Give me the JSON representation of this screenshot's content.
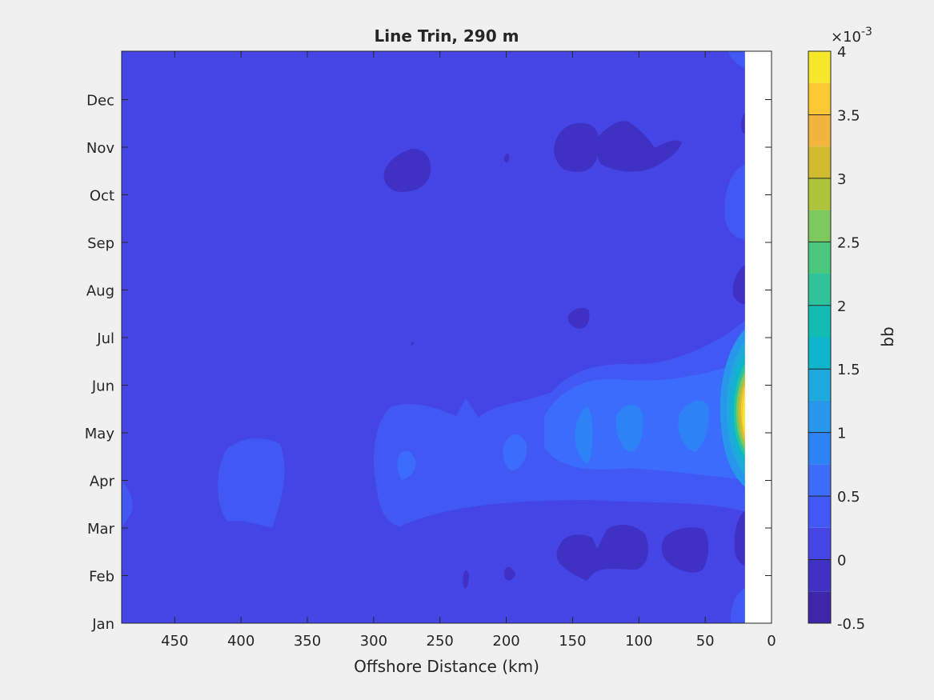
{
  "chart_data": {
    "type": "heatmap",
    "subtype": "filled-contour",
    "title": "Line Trin, 290 m",
    "xlabel": "Offshore Distance (km)",
    "ylabel": "",
    "x_reversed": true,
    "xlim": [
      490,
      0
    ],
    "x_ticks": [
      450,
      400,
      350,
      300,
      250,
      200,
      150,
      100,
      50,
      0
    ],
    "y_ticks": [
      "Jan",
      "Feb",
      "Mar",
      "Apr",
      "May",
      "Jun",
      "Jul",
      "Aug",
      "Sep",
      "Oct",
      "Nov",
      "Dec"
    ],
    "no_data_region": {
      "x_from": 20,
      "x_to": 0
    },
    "colorbar": {
      "label": "bb",
      "exponent_label": "×10",
      "exponent_value": "-3",
      "tick_values": [
        -0.5,
        0,
        0.5,
        1,
        1.5,
        2,
        2.5,
        3,
        3.5,
        4
      ],
      "tick_labels": [
        "-0.5",
        "0",
        "0.5",
        "1",
        "1.5",
        "2",
        "2.5",
        "3",
        "3.5",
        "4"
      ],
      "level_step": 0.25,
      "levels": [
        {
          "from": -0.5,
          "to": -0.25,
          "color": "#3e26a8"
        },
        {
          "from": -0.25,
          "to": 0,
          "color": "#4031c5"
        },
        {
          "from": 0,
          "to": 0.25,
          "color": "#4545e6"
        },
        {
          "from": 0.25,
          "to": 0.5,
          "color": "#4258f5"
        },
        {
          "from": 0.5,
          "to": 0.75,
          "color": "#3c6cfc"
        },
        {
          "from": 0.75,
          "to": 1,
          "color": "#2d83f5"
        },
        {
          "from": 1,
          "to": 1.25,
          "color": "#2896eb"
        },
        {
          "from": 1.25,
          "to": 1.5,
          "color": "#1fa8dc"
        },
        {
          "from": 1.5,
          "to": 1.75,
          "color": "#0eb6cd"
        },
        {
          "from": 1.75,
          "to": 2,
          "color": "#13bcb3"
        },
        {
          "from": 2,
          "to": 2.25,
          "color": "#2ec39b"
        },
        {
          "from": 2.25,
          "to": 2.5,
          "color": "#4cc77e"
        },
        {
          "from": 2.5,
          "to": 2.75,
          "color": "#7dc95d"
        },
        {
          "from": 2.75,
          "to": 3,
          "color": "#aec43a"
        },
        {
          "from": 3,
          "to": 3.25,
          "color": "#d2bb30"
        },
        {
          "from": 3.25,
          "to": 3.5,
          "color": "#f3b43c"
        },
        {
          "from": 3.5,
          "to": 3.75,
          "color": "#fcc836"
        },
        {
          "from": 3.75,
          "to": 4,
          "color": "#f5e72a"
        }
      ]
    },
    "background_level_value": 0.125,
    "features": [
      {
        "id": "coastal-peak",
        "month": 5.0,
        "x": 25,
        "value": 3.9
      },
      {
        "id": "coastal-core",
        "month": 5.0,
        "x": 28,
        "value": 2.6
      },
      {
        "id": "coastal-band",
        "month": 5.1,
        "x": 32,
        "value": 1.6
      },
      {
        "id": "spring-bloom-band",
        "month": 4.9,
        "x": 175,
        "value": 0.6
      },
      {
        "id": "bloom-patch-1",
        "month": 4.9,
        "x": 60,
        "value": 0.9
      },
      {
        "id": "bloom-patch-2",
        "month": 4.9,
        "x": 105,
        "value": 0.9
      },
      {
        "id": "bloom-patch-3",
        "month": 4.9,
        "x": 140,
        "value": 0.9
      },
      {
        "id": "bloom-patch-4",
        "month": 4.6,
        "x": 192,
        "value": 0.8
      },
      {
        "id": "bloom-patch-5",
        "month": 4.6,
        "x": 273,
        "value": 0.8
      },
      {
        "id": "offshore-spring-patch",
        "month": 4.0,
        "x": 390,
        "value": 0.4
      },
      {
        "id": "edge-spring-patch",
        "month": 3.5,
        "x": 487,
        "value": 0.4
      },
      {
        "id": "coastal-fall",
        "month": 9.8,
        "x": 27,
        "value": 0.4
      },
      {
        "id": "coastal-winter",
        "month": 1.3,
        "x": 27,
        "value": 0.4
      },
      {
        "id": "nov-low-1",
        "month": 11.0,
        "x": 130,
        "value": -0.1
      },
      {
        "id": "nov-low-2",
        "month": 11.0,
        "x": 95,
        "value": -0.1
      },
      {
        "id": "oct-low",
        "month": 10.5,
        "x": 268,
        "value": -0.1
      },
      {
        "id": "feb-low-1",
        "month": 2.6,
        "x": 120,
        "value": -0.1
      },
      {
        "id": "feb-low-2",
        "month": 2.6,
        "x": 67,
        "value": -0.1
      },
      {
        "id": "coastal-low-feb",
        "month": 2.6,
        "x": 25,
        "value": -0.1
      },
      {
        "id": "coastal-low-aug",
        "month": 8.0,
        "x": 25,
        "value": -0.1
      },
      {
        "id": "coastal-low-dec",
        "month": 11.5,
        "x": 25,
        "value": -0.1
      },
      {
        "id": "jul-low",
        "month": 7.4,
        "x": 140,
        "value": -0.1
      },
      {
        "id": "feb-speck-1",
        "month": 2.1,
        "x": 230,
        "value": -0.1
      },
      {
        "id": "feb-speck-2",
        "month": 2.0,
        "x": 198,
        "value": -0.1
      },
      {
        "id": "nov-speck",
        "month": 11.2,
        "x": 200,
        "value": -0.1
      }
    ],
    "grid": false,
    "legend": "colorbar-right"
  }
}
